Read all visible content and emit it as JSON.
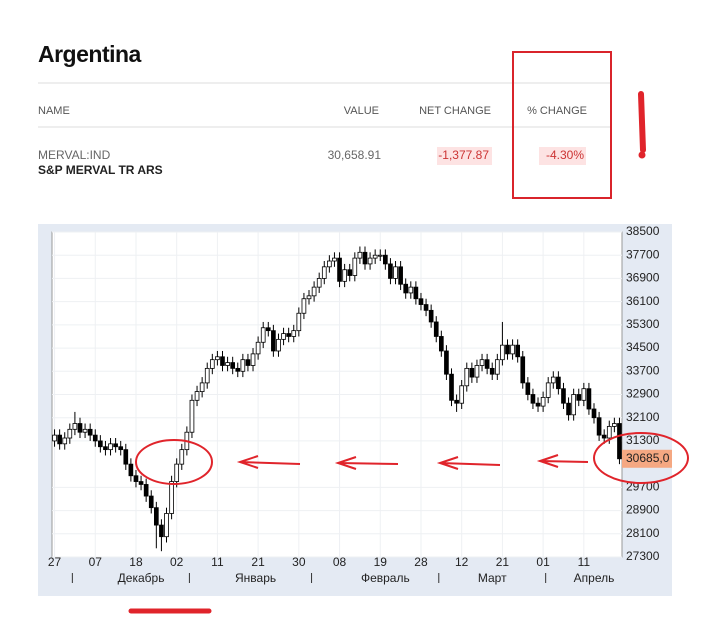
{
  "header": {
    "title": "Argentina"
  },
  "table": {
    "columns": [
      "NAME",
      "VALUE",
      "NET CHANGE",
      "% CHANGE"
    ],
    "rows": [
      {
        "ticker": "MERVAL:IND",
        "name": "S&P MERVAL TR ARS",
        "value": "30,658.91",
        "net_change": "-1,377.87",
        "pct_change": "-4.30%"
      }
    ]
  },
  "chart_data": {
    "type": "candlestick",
    "grid": true,
    "up_color": "#ffffff",
    "down_color": "#000000",
    "ylim": [
      27300,
      38500
    ],
    "yticks": [
      38500,
      37700,
      36900,
      36100,
      35300,
      34500,
      33700,
      32900,
      32100,
      31300,
      29700,
      28900,
      28100,
      27300
    ],
    "xlim": [
      -0.5,
      111.5
    ],
    "xticks": [
      {
        "value": 0,
        "label": "27"
      },
      {
        "value": 8,
        "label": "07"
      },
      {
        "value": 16,
        "label": "18"
      },
      {
        "value": 24,
        "label": "02"
      },
      {
        "value": 32,
        "label": "11"
      },
      {
        "value": 40,
        "label": "21"
      },
      {
        "value": 48,
        "label": "30"
      },
      {
        "value": 56,
        "label": "08"
      },
      {
        "value": 64,
        "label": "19"
      },
      {
        "value": 72,
        "label": "28"
      },
      {
        "value": 80,
        "label": "12"
      },
      {
        "value": 88,
        "label": "21"
      },
      {
        "value": 96,
        "label": "01"
      },
      {
        "value": 104,
        "label": "11"
      }
    ],
    "month_labels": [
      {
        "value": 17,
        "label": "Декабрь"
      },
      {
        "value": 39.5,
        "label": "Январь"
      },
      {
        "value": 65,
        "label": "Февраль"
      },
      {
        "value": 86,
        "label": "Март"
      },
      {
        "value": 106,
        "label": "Апрель"
      }
    ],
    "month_separators": [
      3.5,
      26.5,
      50.5,
      75.5,
      96.5
    ],
    "last_price": {
      "value": 30685,
      "label": "30685,0"
    },
    "open": [
      31300,
      31500,
      31200,
      31400,
      31700,
      31900,
      31600,
      31700,
      31500,
      31300,
      31100,
      31000,
      31200,
      31100,
      31000,
      30500,
      30100,
      29900,
      29800,
      29400,
      29000,
      28400,
      28000,
      28800,
      29900,
      30500,
      31000,
      31600,
      32700,
      33000,
      33300,
      33800,
      34100,
      34200,
      33900,
      34000,
      33800,
      33700,
      34100,
      33900,
      34300,
      34700,
      35200,
      35100,
      34400,
      34800,
      35000,
      34900,
      35100,
      35700,
      36200,
      36300,
      36600,
      36900,
      37300,
      37500,
      37600,
      36800,
      37200,
      37000,
      37600,
      37800,
      37400,
      37600,
      37700,
      37700,
      37400,
      36900,
      37300,
      36700,
      36400,
      36600,
      36200,
      36000,
      35800,
      35400,
      34900,
      34400,
      33600,
      32700,
      32600,
      33200,
      33800,
      33500,
      33900,
      34100,
      33800,
      33600,
      34100,
      34600,
      34300,
      34600,
      34200,
      33300,
      32900,
      32600,
      32500,
      32800,
      33300,
      33500,
      33100,
      32600,
      32200,
      32900,
      32700,
      33100,
      32400,
      32100,
      31500,
      31400,
      31800,
      31900
    ],
    "high": [
      31700,
      31700,
      31600,
      31900,
      32300,
      32100,
      31900,
      31900,
      31700,
      31500,
      31300,
      31400,
      31400,
      31300,
      31200,
      30700,
      30300,
      30100,
      30000,
      29600,
      29200,
      28600,
      29000,
      30100,
      30700,
      31200,
      31800,
      32900,
      33200,
      33500,
      34000,
      34300,
      34400,
      34400,
      34200,
      34200,
      34000,
      34300,
      34300,
      34500,
      34900,
      35400,
      35400,
      35300,
      35000,
      35200,
      35200,
      35300,
      35900,
      36400,
      36500,
      36800,
      37100,
      37500,
      37700,
      37800,
      37800,
      37400,
      37400,
      37800,
      38000,
      38000,
      37800,
      37900,
      37900,
      37900,
      37600,
      37500,
      37500,
      36900,
      36800,
      36800,
      36400,
      36200,
      36000,
      35600,
      35100,
      34600,
      33800,
      32900,
      33400,
      34000,
      34000,
      34100,
      34300,
      34300,
      34000,
      34300,
      35400,
      34800,
      34800,
      34800,
      34400,
      33500,
      33100,
      32800,
      33000,
      33500,
      33700,
      33700,
      33300,
      32800,
      33100,
      33100,
      33300,
      33300,
      32600,
      32300,
      31700,
      32000,
      32100,
      32100
    ],
    "low": [
      31100,
      31000,
      31000,
      31200,
      31500,
      31400,
      31400,
      31300,
      31100,
      30900,
      30800,
      30800,
      30900,
      30800,
      30300,
      29900,
      29700,
      29600,
      29200,
      28800,
      27600,
      27500,
      27800,
      28600,
      29700,
      30300,
      30800,
      31400,
      32500,
      32800,
      33100,
      33600,
      33900,
      33700,
      33700,
      33600,
      33500,
      33500,
      33700,
      33700,
      34100,
      34500,
      34900,
      34200,
      34200,
      34600,
      34700,
      34700,
      34900,
      35500,
      36000,
      36100,
      36400,
      36700,
      37100,
      37300,
      36600,
      36600,
      36800,
      36800,
      37400,
      37200,
      37200,
      37400,
      37500,
      37200,
      36700,
      36700,
      36500,
      36200,
      36200,
      36000,
      35800,
      35600,
      35200,
      34700,
      34200,
      33400,
      32500,
      32300,
      32400,
      33000,
      33300,
      33300,
      33700,
      33600,
      33400,
      33400,
      33900,
      34100,
      34100,
      34000,
      33100,
      32700,
      32400,
      32300,
      32300,
      32600,
      33100,
      32900,
      32400,
      32000,
      32000,
      32500,
      32500,
      32200,
      31900,
      31300,
      31200,
      31200,
      31600,
      30500
    ],
    "close": [
      31500,
      31200,
      31400,
      31700,
      31900,
      31600,
      31700,
      31500,
      31300,
      31100,
      31000,
      31200,
      31100,
      31000,
      30500,
      30100,
      29900,
      29800,
      29400,
      29000,
      28400,
      28000,
      28800,
      29900,
      30500,
      31000,
      31600,
      32700,
      33000,
      33300,
      33800,
      34100,
      34200,
      33900,
      34000,
      33800,
      33700,
      34100,
      33900,
      34300,
      34700,
      35200,
      35100,
      34400,
      34800,
      35000,
      34900,
      35100,
      35700,
      36200,
      36300,
      36600,
      36900,
      37300,
      37500,
      37600,
      36800,
      37200,
      37000,
      37600,
      37800,
      37400,
      37600,
      37700,
      37700,
      37400,
      36900,
      37300,
      36700,
      36400,
      36600,
      36200,
      36000,
      35800,
      35400,
      34900,
      34400,
      33600,
      32700,
      32600,
      33200,
      33800,
      33500,
      33900,
      34100,
      33800,
      33600,
      34100,
      34600,
      34300,
      34600,
      34200,
      33300,
      32900,
      32600,
      32500,
      32800,
      33300,
      33500,
      33100,
      32600,
      32200,
      32900,
      32700,
      33100,
      32400,
      32100,
      31500,
      31400,
      31800,
      31900,
      30685
    ]
  }
}
